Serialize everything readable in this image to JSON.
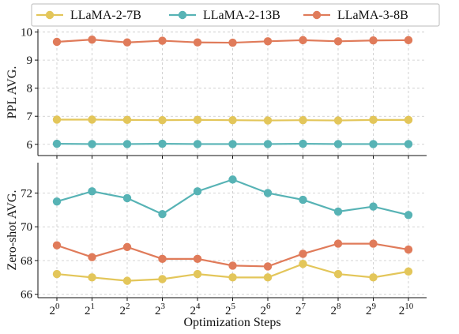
{
  "chart_data": {
    "type": "line",
    "x_ticks": [
      "2",
      "2",
      "2",
      "2",
      "2",
      "2",
      "2",
      "2",
      "2",
      "2",
      "2"
    ],
    "x_exponents": [
      "0",
      "1",
      "2",
      "3",
      "4",
      "5",
      "6",
      "7",
      "8",
      "9",
      "10"
    ],
    "x": [
      1,
      2,
      4,
      8,
      16,
      32,
      64,
      128,
      256,
      512,
      1024
    ],
    "xlabel": "Optimization Steps",
    "legend": {
      "placement": "top",
      "entries": [
        "LLaMA-2-7B",
        "LLaMA-2-13B",
        "LLaMA-3-8B"
      ]
    },
    "grid": true,
    "colors": {
      "LLaMA-2-7B": "#e3c65a",
      "LLaMA-2-13B": "#57b3b5",
      "LLaMA-3-8B": "#e07b5a"
    },
    "panels": [
      {
        "ylabel": "PPL AVG.",
        "ylim": [
          5.6,
          10.1
        ],
        "yticks": [
          6,
          7,
          8,
          9,
          10
        ],
        "ytick_labels": [
          "6",
          "7",
          "8",
          "9",
          "10"
        ],
        "series": [
          {
            "name": "LLaMA-2-7B",
            "values": [
              6.88,
              6.88,
              6.87,
              6.86,
              6.87,
              6.86,
              6.85,
              6.86,
              6.85,
              6.87,
              6.87
            ]
          },
          {
            "name": "LLaMA-2-13B",
            "values": [
              6.02,
              6.01,
              6.01,
              6.02,
              6.01,
              6.01,
              6.01,
              6.02,
              6.01,
              6.01,
              6.01
            ]
          },
          {
            "name": "LLaMA-3-8B",
            "values": [
              9.65,
              9.73,
              9.63,
              9.69,
              9.63,
              9.62,
              9.67,
              9.71,
              9.67,
              9.7,
              9.71
            ]
          }
        ]
      },
      {
        "ylabel": "Zero-shot AVG.",
        "ylim": [
          65.8,
          73.8
        ],
        "yticks": [
          66,
          68,
          70,
          72
        ],
        "ytick_labels": [
          "66",
          "68",
          "70",
          "72"
        ],
        "series": [
          {
            "name": "LLaMA-2-7B",
            "values": [
              67.2,
              67.0,
              66.8,
              66.9,
              67.2,
              67.0,
              67.0,
              67.8,
              67.2,
              67.0,
              67.35
            ]
          },
          {
            "name": "LLaMA-2-13B",
            "values": [
              71.5,
              72.1,
              71.7,
              70.75,
              72.1,
              72.8,
              72.0,
              71.6,
              70.9,
              71.2,
              70.7
            ]
          },
          {
            "name": "LLaMA-3-8B",
            "values": [
              68.9,
              68.2,
              68.8,
              68.1,
              68.1,
              67.7,
              67.65,
              68.4,
              69.0,
              69.0,
              68.65
            ]
          }
        ]
      }
    ]
  }
}
